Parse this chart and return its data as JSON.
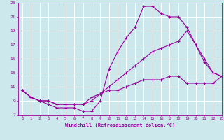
{
  "line1_x": [
    0,
    1,
    2,
    3,
    4,
    5,
    6,
    7,
    8,
    9,
    10,
    11,
    12,
    13,
    14,
    15,
    16,
    17,
    18,
    19,
    20,
    21,
    22,
    23
  ],
  "line1_y": [
    10.5,
    9.5,
    9.0,
    8.5,
    8.0,
    8.0,
    8.0,
    7.5,
    7.5,
    9.0,
    13.5,
    16.0,
    18.0,
    19.5,
    22.5,
    22.5,
    21.5,
    21.0,
    21.0,
    19.5,
    17.0,
    14.5,
    13.0,
    12.5
  ],
  "line2_x": [
    0,
    1,
    2,
    3,
    4,
    5,
    6,
    7,
    8,
    9,
    10,
    11,
    12,
    13,
    14,
    15,
    16,
    17,
    18,
    19,
    20,
    21,
    22,
    23
  ],
  "line2_y": [
    10.5,
    9.5,
    9.0,
    9.0,
    8.5,
    8.5,
    8.5,
    8.5,
    9.0,
    10.0,
    11.0,
    12.0,
    13.0,
    14.0,
    15.0,
    16.0,
    16.5,
    17.0,
    17.5,
    19.0,
    17.0,
    15.0,
    13.0,
    12.5
  ],
  "line3_x": [
    0,
    1,
    2,
    3,
    4,
    5,
    6,
    7,
    8,
    9,
    10,
    11,
    12,
    13,
    14,
    15,
    16,
    17,
    18,
    19,
    20,
    21,
    22,
    23
  ],
  "line3_y": [
    10.5,
    9.5,
    9.0,
    9.0,
    8.5,
    8.5,
    8.5,
    8.5,
    9.5,
    10.0,
    10.5,
    10.5,
    11.0,
    11.5,
    12.0,
    12.0,
    12.0,
    12.5,
    12.5,
    11.5,
    11.5,
    11.5,
    11.5,
    12.5
  ],
  "line_color": "#990099",
  "bg_color": "#cce8ec",
  "grid_color": "#ffffff",
  "xlabel": "Windchill (Refroidissement éolien,°C)",
  "xlim": [
    -0.5,
    23
  ],
  "ylim": [
    7,
    23
  ],
  "yticks": [
    7,
    9,
    11,
    13,
    15,
    17,
    19,
    21,
    23
  ],
  "xticks": [
    0,
    1,
    2,
    3,
    4,
    5,
    6,
    7,
    8,
    9,
    10,
    11,
    12,
    13,
    14,
    15,
    16,
    17,
    18,
    19,
    20,
    21,
    22,
    23
  ]
}
